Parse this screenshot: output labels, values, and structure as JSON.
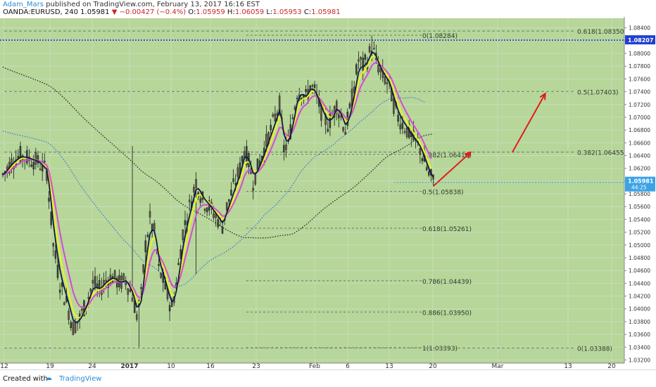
{
  "header": {
    "author": "Adam_Mars",
    "published": "published on TradingView.com, February 13, 2017 16:16 EST",
    "symbol": "OANDA:EURUSD, 240",
    "last": "1.05981",
    "change": "−0.00427 (−0.4%)",
    "o_label": "O:",
    "o_value": "1.05959",
    "h_label": "H:",
    "h_value": "1.06059",
    "l_label": "L:",
    "l_value": "1.05953",
    "c_label": "C:",
    "c_value": "1.05981"
  },
  "footer": {
    "created_with": "Created with",
    "brand": "TradingView"
  },
  "colors": {
    "plot_bg": "#b6d69a",
    "fib_line": "#6b7c63",
    "ma_yellow": "#f3f01b",
    "ma_magenta": "#d64bd0",
    "ma_navy": "#0d1b45",
    "ma_blue_dotted": "#3a73d8",
    "ma_black_dotted": "#1a1a1a",
    "arrow": "#e31a1a",
    "level_line": "#1f3fd0",
    "price_badge": "#3ba3e6"
  },
  "chart_data": {
    "type": "candlestick",
    "ylim": [
      1.0315,
      1.0855
    ],
    "x_tick_labels": [
      "12",
      "19",
      "24",
      "2017",
      "10",
      "16",
      "23",
      "Feb",
      "6",
      "13",
      "20",
      "Mar",
      "13",
      "20"
    ],
    "y_tick_labels": [
      "1.08400",
      "1.08200",
      "1.08000",
      "1.07800",
      "1.07600",
      "1.07400",
      "1.07200",
      "1.07000",
      "1.06800",
      "1.06600",
      "1.06400",
      "1.06200",
      "1.06000",
      "1.05800",
      "1.05600",
      "1.05400",
      "1.05200",
      "1.05000",
      "1.04800",
      "1.04600",
      "1.04400",
      "1.04200",
      "1.04000",
      "1.03800",
      "1.03600",
      "1.03400",
      "1.03200"
    ],
    "fib_left": [
      {
        "label": "0(1.08284)",
        "price": 1.08284
      },
      {
        "label": "0.382(1.06416)",
        "price": 1.06416
      },
      {
        "label": "0.5(1.05838)",
        "price": 1.05838
      },
      {
        "label": "0.618(1.05261)",
        "price": 1.05261
      },
      {
        "label": "0.786(1.04439)",
        "price": 1.04439
      },
      {
        "label": "0.886(1.03950)",
        "price": 1.0395
      },
      {
        "label": "1(1.03393)",
        "price": 1.03393
      }
    ],
    "fib_right": [
      {
        "label": "0.618(1.08350)",
        "price": 1.0835
      },
      {
        "label": "0.5(1.07403)",
        "price": 1.07403
      },
      {
        "label": "0.382(1.06455)",
        "price": 1.06455
      },
      {
        "label": "0(1.03388)",
        "price": 1.03388
      }
    ],
    "level_badge": {
      "label": "1.08207",
      "price": 1.08207
    },
    "last_price_badge": {
      "label": "1.05981",
      "sub": "44:25",
      "price": 1.05981
    },
    "price_path": [
      [
        0,
        1.061
      ],
      [
        4,
        1.063
      ],
      [
        8,
        1.064
      ],
      [
        12,
        1.0635
      ],
      [
        16,
        1.063
      ],
      [
        20,
        1.0615
      ],
      [
        23,
        1.05
      ],
      [
        26,
        1.044
      ],
      [
        29,
        1.041
      ],
      [
        32,
        1.037
      ],
      [
        35,
        1.0385
      ],
      [
        38,
        1.041
      ],
      [
        41,
        1.044
      ],
      [
        44,
        1.043
      ],
      [
        47,
        1.0445
      ],
      [
        50,
        1.045
      ],
      [
        53,
        1.044
      ],
      [
        56,
        1.0445
      ],
      [
        59,
        1.042
      ],
      [
        61,
        1.039
      ],
      [
        63,
        1.042
      ],
      [
        65,
        1.05
      ],
      [
        67,
        1.054
      ],
      [
        69,
        1.052
      ],
      [
        71,
        1.046
      ],
      [
        73,
        1.0445
      ],
      [
        75,
        1.042
      ],
      [
        77,
        1.04
      ],
      [
        79,
        1.044
      ],
      [
        82,
        1.052
      ],
      [
        85,
        1.056
      ],
      [
        88,
        1.06
      ],
      [
        91,
        1.057
      ],
      [
        94,
        1.056
      ],
      [
        96,
        1.055
      ],
      [
        98,
        1.054
      ],
      [
        100,
        1.053
      ],
      [
        102,
        1.056
      ],
      [
        104,
        1.058
      ],
      [
        106,
        1.06
      ],
      [
        108,
        1.062
      ],
      [
        110,
        1.065
      ],
      [
        112,
        1.063
      ],
      [
        114,
        1.06
      ],
      [
        116,
        1.062
      ],
      [
        118,
        1.064
      ],
      [
        120,
        1.066
      ],
      [
        122,
        1.068
      ],
      [
        124,
        1.07
      ],
      [
        126,
        1.072
      ],
      [
        128,
        1.065
      ],
      [
        130,
        1.066
      ],
      [
        132,
        1.07
      ],
      [
        134,
        1.074
      ],
      [
        136,
        1.074
      ],
      [
        138,
        1.073
      ],
      [
        140,
        1.075
      ],
      [
        142,
        1.074
      ],
      [
        144,
        1.072
      ],
      [
        146,
        1.07
      ],
      [
        148,
        1.069
      ],
      [
        150,
        1.07
      ],
      [
        152,
        1.072
      ],
      [
        154,
        1.07
      ],
      [
        156,
        1.068
      ],
      [
        158,
        1.071
      ],
      [
        160,
        1.075
      ],
      [
        162,
        1.079
      ],
      [
        164,
        1.078
      ],
      [
        166,
        1.079
      ],
      [
        168,
        1.081
      ],
      [
        170,
        1.079
      ],
      [
        172,
        1.077
      ],
      [
        174,
        1.076
      ],
      [
        176,
        1.075
      ],
      [
        178,
        1.072
      ],
      [
        180,
        1.07
      ],
      [
        182,
        1.069
      ],
      [
        184,
        1.068
      ],
      [
        186,
        1.067
      ],
      [
        188,
        1.066
      ],
      [
        190,
        1.065
      ],
      [
        192,
        1.063
      ],
      [
        194,
        1.061
      ],
      [
        196,
        1.06
      ]
    ],
    "arrows": [
      {
        "from": [
          196,
          1.0592
        ],
        "to": [
          213,
          1.0645
        ]
      },
      {
        "from": [
          232,
          1.0645
        ],
        "to": [
          247,
          1.0737
        ]
      }
    ]
  }
}
